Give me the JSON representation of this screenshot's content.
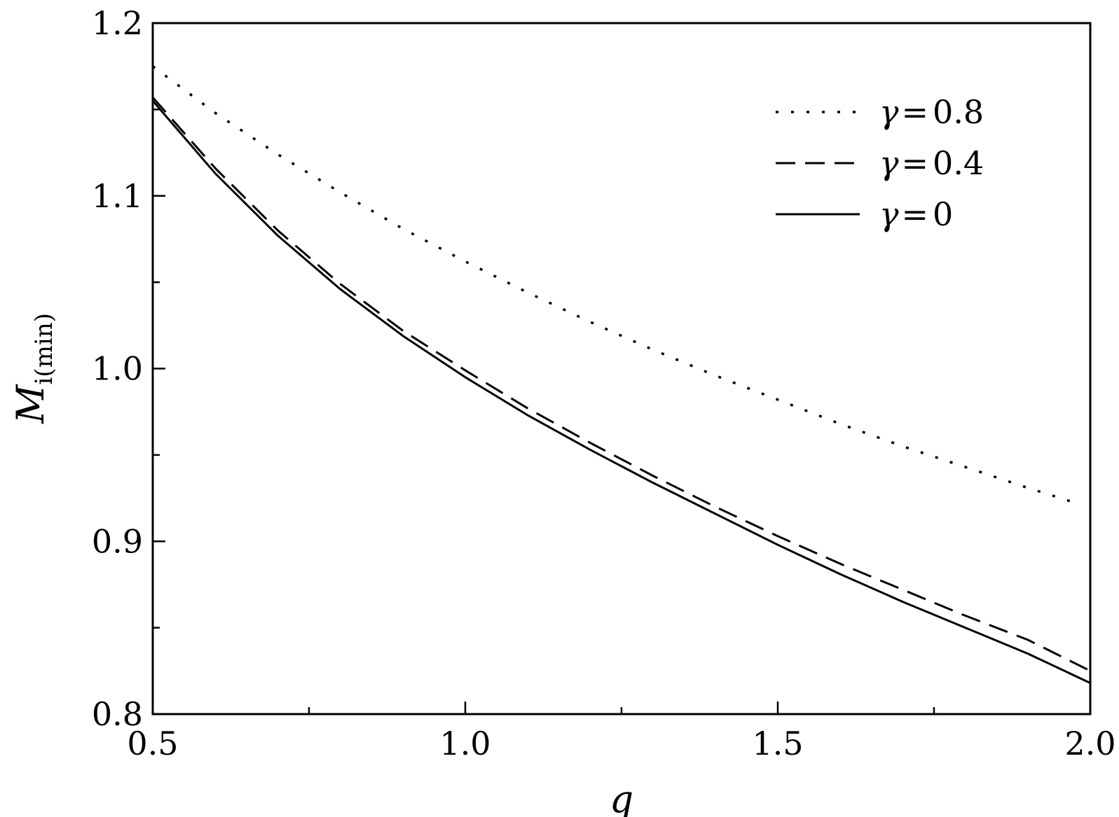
{
  "chart_data": {
    "type": "line",
    "title": "",
    "xlabel": "q",
    "ylabel_main": "M",
    "ylabel_sub": "i(min)",
    "xlim": [
      0.5,
      2.0
    ],
    "ylim": [
      0.8,
      1.2
    ],
    "x_major_ticks": [
      0.5,
      1.0,
      1.5,
      2.0
    ],
    "x_tick_labels": [
      "0.5",
      "1.0",
      "1.5",
      "2.0"
    ],
    "x_minor_ticks": [
      0.75,
      1.25,
      1.75
    ],
    "y_major_ticks": [
      0.8,
      0.9,
      1.0,
      1.1,
      1.2
    ],
    "y_tick_labels": [
      "0.8",
      "0.9",
      "1.0",
      "1.1",
      "1.2"
    ],
    "y_minor_ticks": [
      0.85,
      0.95,
      1.05,
      1.15
    ],
    "grid": false,
    "legend_position": "top-right",
    "x": [
      0.5,
      0.6,
      0.7,
      0.8,
      0.9,
      1.0,
      1.1,
      1.2,
      1.3,
      1.4,
      1.5,
      1.6,
      1.7,
      1.8,
      1.9,
      2.0
    ],
    "series": [
      {
        "name": "γ = 0.8",
        "legend_symbol": "γ",
        "legend_equals": "=",
        "legend_value": "0.8",
        "dash": "dotted",
        "x": [
          0.5,
          0.6,
          0.7,
          0.8,
          0.9,
          1.0,
          1.1,
          1.2,
          1.3,
          1.4,
          1.5,
          1.6,
          1.7,
          1.8,
          1.9,
          1.97
        ],
        "values": [
          1.175,
          1.148,
          1.124,
          1.102,
          1.081,
          1.062,
          1.044,
          1.027,
          1.011,
          0.996,
          0.982,
          0.968,
          0.955,
          0.943,
          0.931,
          0.923
        ]
      },
      {
        "name": "γ = 0.4",
        "legend_symbol": "γ",
        "legend_equals": "=",
        "legend_value": "0.4",
        "dash": "dashed",
        "x": [
          0.5,
          0.6,
          0.7,
          0.8,
          0.9,
          1.0,
          1.1,
          1.2,
          1.3,
          1.4,
          1.5,
          1.6,
          1.7,
          1.8,
          1.9,
          2.0
        ],
        "values": [
          1.157,
          1.116,
          1.08,
          1.049,
          1.022,
          0.999,
          0.977,
          0.957,
          0.938,
          0.92,
          0.903,
          0.887,
          0.872,
          0.857,
          0.843,
          0.825
        ]
      },
      {
        "name": "γ = 0",
        "legend_symbol": "γ",
        "legend_equals": "=",
        "legend_value": "0",
        "dash": "solid",
        "x": [
          0.5,
          0.6,
          0.7,
          0.8,
          0.9,
          1.0,
          1.1,
          1.2,
          1.3,
          1.4,
          1.5,
          1.6,
          1.7,
          1.8,
          1.9,
          2.0
        ],
        "values": [
          1.155,
          1.113,
          1.077,
          1.046,
          1.019,
          0.995,
          0.973,
          0.953,
          0.934,
          0.916,
          0.898,
          0.881,
          0.865,
          0.85,
          0.835,
          0.818
        ]
      }
    ]
  }
}
